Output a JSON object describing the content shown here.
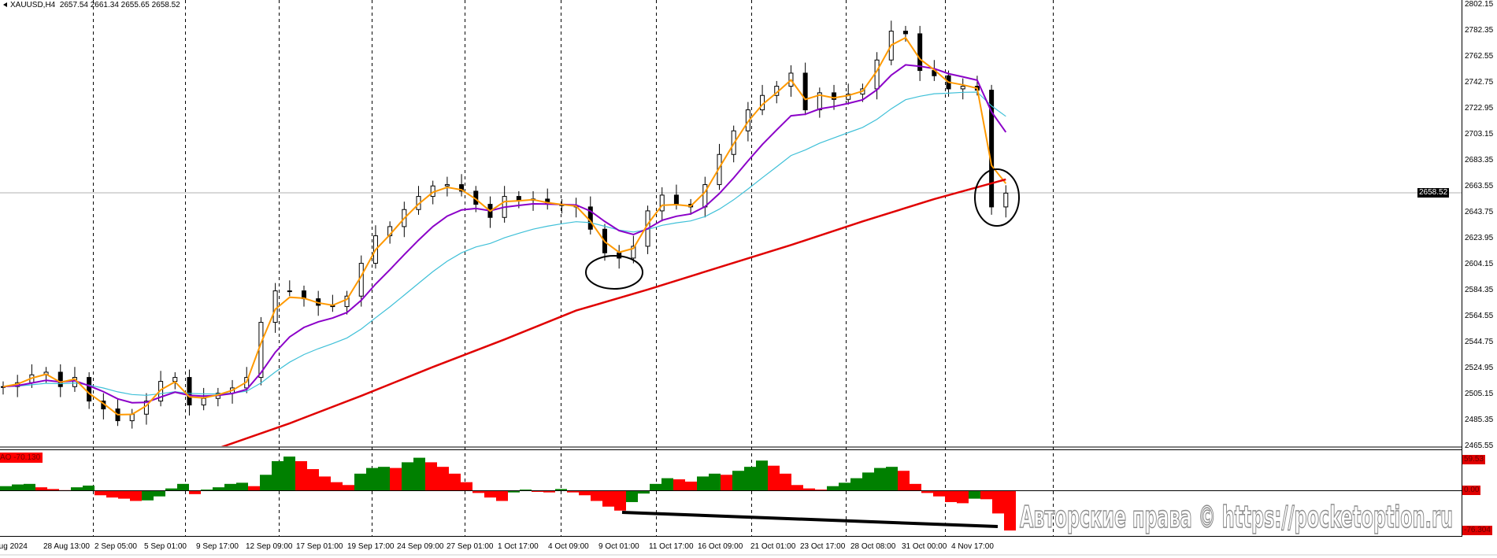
{
  "header": {
    "symbol": "XAUUSD,H4",
    "ohlc": "2657.54 2661.34 2655.65 2658.52"
  },
  "price_axis": {
    "ticks": [
      "2802.15",
      "2782.35",
      "2762.55",
      "2742.75",
      "2722.95",
      "2703.15",
      "2683.35",
      "2663.55",
      "2643.75",
      "2623.95",
      "2604.15",
      "2584.35",
      "2564.55",
      "2544.75",
      "2524.95",
      "2505.15",
      "2485.35",
      "2465.55"
    ],
    "current_price": "2658.52"
  },
  "oscillator": {
    "name": "AO -70.130",
    "axis_labels": {
      "max": "59.53",
      "zero": "0.00",
      "min": "-76.304"
    },
    "colors": {
      "up": "#008000",
      "down": "#ff0000"
    }
  },
  "time_axis": [
    "Aug 2024",
    "28 Aug 13:00",
    "2 Sep 05:00",
    "5 Sep 01:00",
    "9 Sep 17:00",
    "12 Sep 09:00",
    "17 Sep 01:00",
    "19 Sep 17:00",
    "24 Sep 09:00",
    "27 Sep 01:00",
    "1 Oct 17:00",
    "4 Oct 09:00",
    "9 Oct 01:00",
    "11 Oct 17:00",
    "16 Oct 09:00",
    "21 Oct 01:00",
    "23 Oct 17:00",
    "28 Oct 08:00",
    "31 Oct 00:00",
    "4 Nov 17:00"
  ],
  "watermark": "Авторские права © https://pocketoption.ru",
  "chart_data": {
    "type": "line",
    "title": "XAUUSD,H4",
    "ylim": [
      2465.55,
      2802.15
    ],
    "closes": [
      2511,
      2514,
      2520,
      2522,
      2511,
      2518,
      2500,
      2494,
      2485,
      2490,
      2500,
      2515,
      2518,
      2497,
      2502,
      2506,
      2510,
      2518,
      2560,
      2584,
      2584,
      2578,
      2573,
      2572,
      2580,
      2605,
      2626,
      2633,
      2646,
      2656,
      2664,
      2665,
      2660,
      2650,
      2640,
      2656,
      2653,
      2654,
      2650,
      2649,
      2648,
      2631,
      2613,
      2609,
      2618,
      2645,
      2657,
      2650,
      2648,
      2665,
      2688,
      2706,
      2722,
      2733,
      2740,
      2750,
      2722,
      2735,
      2730,
      2734,
      2738,
      2760,
      2782,
      2780,
      2752,
      2748,
      2738,
      2740,
      2737,
      2648,
      2658.52
    ],
    "ma_red_every_5_bars": [
      null,
      null,
      null,
      2464,
      2483,
      2504,
      2526,
      2547,
      2569,
      2585,
      2602,
      2619,
      2637,
      2654,
      2669
    ],
    "colors": {
      "fast_ma": "#ff9900",
      "mid_ma": "#8b00c8",
      "slow_ma": "#3fc0d8",
      "long_ma": "#e00000"
    },
    "ao": {
      "ylim": [
        -76.304,
        59.53
      ],
      "values": [
        8,
        11,
        12,
        6,
        3,
        1,
        6,
        9,
        -8,
        -12,
        -14,
        -18,
        -17,
        -10,
        4,
        12,
        -6,
        2,
        6,
        12,
        14,
        8,
        28,
        52,
        60,
        52,
        38,
        25,
        15,
        10,
        30,
        40,
        42,
        40,
        50,
        58,
        50,
        42,
        30,
        15,
        -4,
        -12,
        -18,
        -3,
        2,
        -2,
        -3,
        3,
        -3,
        -8,
        -18,
        -28,
        -35,
        -20,
        -5,
        12,
        22,
        20,
        16,
        25,
        30,
        28,
        35,
        42,
        53,
        44,
        30,
        10,
        4,
        2,
        8,
        14,
        22,
        32,
        40,
        42,
        35,
        12,
        -4,
        -10,
        -20,
        -22,
        -14,
        -15,
        -40,
        -70
      ]
    }
  }
}
